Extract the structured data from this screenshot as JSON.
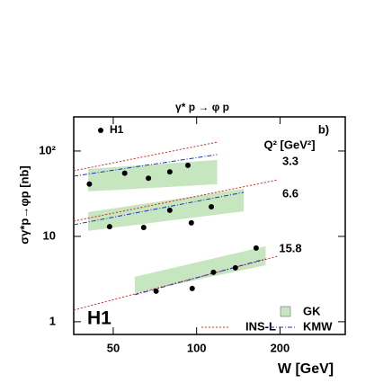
{
  "chart_data": {
    "type": "scatter",
    "title": "γ* p → φ p",
    "annotation": "b)",
    "q2_header": "Q² [GeV²]",
    "experiment_label": "H1",
    "x_label": "W [GeV]",
    "y_label": "σγ*p→φp [nb]",
    "log_x": true,
    "log_y": true,
    "xlim": [
      36,
      344
    ],
    "ylim": [
      0.71,
      251
    ],
    "xticks": [
      50,
      100,
      200
    ],
    "yticks": [
      1,
      10,
      {
        "value": 100,
        "label": "10²"
      }
    ],
    "series": [
      {
        "name": "H1",
        "color": "#000000"
      },
      {
        "name": "GK",
        "color": "#c6e6c0"
      },
      {
        "name": "INS-L",
        "color": "#e02020"
      },
      {
        "name": "KMW",
        "color": "#2030c0"
      }
    ],
    "groups": [
      {
        "label": "3.3",
        "data": {
          "x": [
            41,
            55,
            67,
            80,
            93
          ],
          "values": [
            41,
            55,
            48,
            57,
            68
          ]
        },
        "gk": {
          "x": [
            40.6,
            118.6
          ],
          "low": [
            33.6,
            40.8
          ],
          "high": [
            61.6,
            78.5
          ]
        },
        "ins_l": {
          "x": [
            36,
            118.6
          ],
          "values": [
            58.7,
            127
          ]
        },
        "kmw": {
          "x": [
            36,
            118.6
          ],
          "values": [
            50.7,
            90.8
          ]
        }
      },
      {
        "label": "6.6",
        "data": {
          "x": [
            48.5,
            64.4,
            80,
            95.7,
            113
          ],
          "values": [
            13,
            12.7,
            20.2,
            14.4,
            22.2
          ]
        },
        "gk": {
          "x": [
            40.6,
            148
          ],
          "low": [
            11.6,
            19.7
          ],
          "high": [
            19.2,
            36.1
          ]
        },
        "ins_l": {
          "x": [
            36,
            196.8
          ],
          "values": [
            15.1,
            46
          ]
        },
        "kmw": {
          "x": [
            36,
            148
          ],
          "values": [
            13.7,
            32.8
          ]
        }
      },
      {
        "label": "15.8",
        "data": {
          "x": [
            71.4,
            96.4,
            115,
            138,
            164
          ],
          "values": [
            2.28,
            2.45,
            3.79,
            4.28,
            7.3
          ]
        },
        "gk": {
          "x": [
            59.8,
            177.5
          ],
          "low": [
            2.17,
            4.6
          ],
          "high": [
            3.36,
            7.66
          ]
        },
        "ins_l": {
          "x": [
            36,
            196.8
          ],
          "values": [
            1.37,
            5.87
          ]
        },
        "kmw": {
          "x": [
            59.8,
            177.5
          ],
          "values": [
            2.07,
            5.46
          ]
        }
      }
    ]
  }
}
